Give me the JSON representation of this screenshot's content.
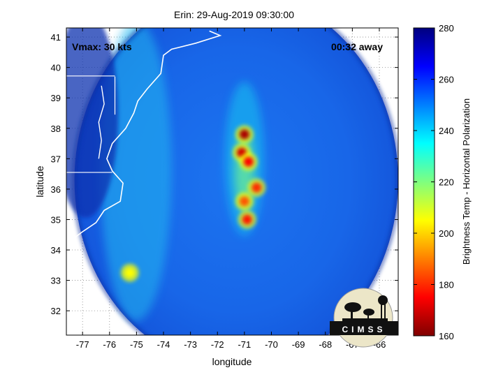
{
  "chart_data": {
    "type": "heatmap",
    "title": "Erin: 29-Aug-2019 09:30:00",
    "xlabel": "longitude",
    "ylabel": "latitude",
    "xlim": [
      -77.6,
      -65.3
    ],
    "ylim": [
      31.2,
      41.3
    ],
    "x_ticks": [
      -77,
      -76,
      -75,
      -74,
      -73,
      -72,
      -71,
      -70,
      -69,
      -68,
      -67,
      -66
    ],
    "y_ticks": [
      32,
      33,
      34,
      35,
      36,
      37,
      38,
      39,
      40,
      41
    ],
    "grid": true,
    "annotations": {
      "vmax": "Vmax: 30 kts",
      "time_away": "00:32 away"
    },
    "swath": {
      "center_lon": -71.3,
      "center_lat": 36.3,
      "radius_deg": 6.0
    },
    "colorbar": {
      "label": "Brightness Temp - Horizontal Polarization",
      "range": [
        160,
        280
      ],
      "ticks": [
        160,
        180,
        200,
        220,
        240,
        260,
        280
      ]
    },
    "features": [
      {
        "lon": -71.0,
        "lat": 37.8,
        "value": 165
      },
      {
        "lon": -71.1,
        "lat": 37.2,
        "value": 170
      },
      {
        "lon": -70.85,
        "lat": 36.9,
        "value": 175
      },
      {
        "lon": -70.55,
        "lat": 36.05,
        "value": 180
      },
      {
        "lon": -71.0,
        "lat": 35.6,
        "value": 185
      },
      {
        "lon": -70.9,
        "lat": 35.0,
        "value": 178
      },
      {
        "lon": -75.25,
        "lat": 33.25,
        "value": 205
      }
    ],
    "watermark": "CIMSS",
    "colors": {
      "swath_base": "#1a66e6",
      "frame": "#000000"
    }
  }
}
